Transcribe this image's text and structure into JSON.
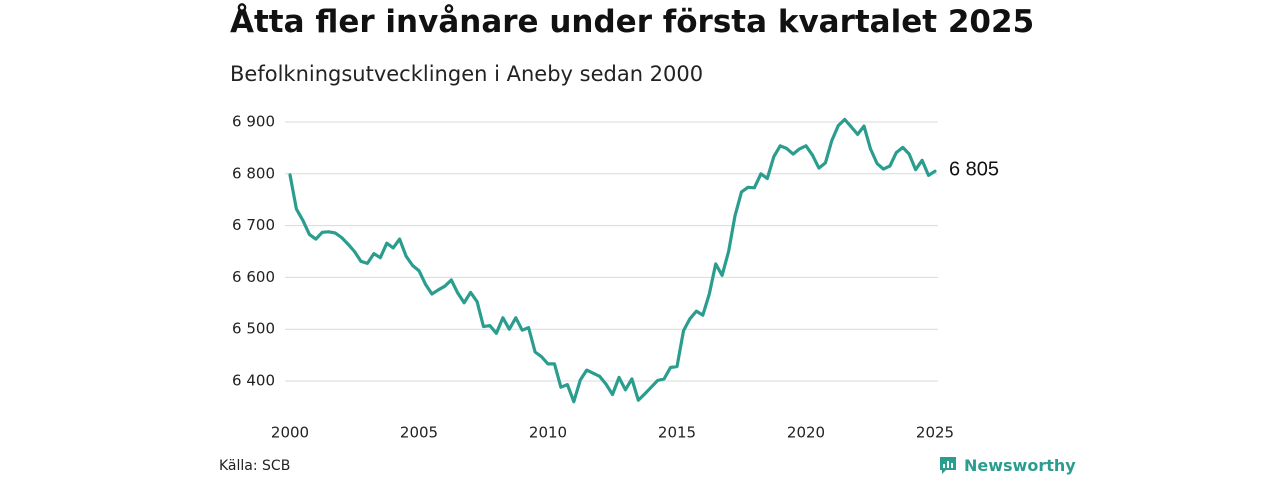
{
  "title": "Åtta fler invånare under första kvartalet 2025",
  "subtitle": "Befolkningsutvecklingen i Aneby sedan 2000",
  "source": "Källa: SCB",
  "brand": {
    "name": "Newsworthy",
    "icon": "newsworthy-logo-icon",
    "color": "#2a9d8f"
  },
  "end_label": "6 805",
  "chart_data": {
    "type": "line",
    "title": "Åtta fler invånare under första kvartalet 2025",
    "subtitle": "Befolkningsutvecklingen i Aneby sedan 2000",
    "xlabel": "",
    "ylabel": "",
    "xlim": [
      2000,
      2025.25
    ],
    "ylim": [
      6350,
      6920
    ],
    "grid": true,
    "line_color": "#2a9d8f",
    "x_ticks": [
      2000,
      2005,
      2010,
      2015,
      2020,
      2025
    ],
    "x_tick_labels": [
      "2000",
      "2005",
      "2010",
      "2015",
      "2020",
      "2025"
    ],
    "y_ticks": [
      6400,
      6500,
      6600,
      6700,
      6800,
      6900
    ],
    "y_tick_labels": [
      "6 400",
      "6 500",
      "6 600",
      "6 700",
      "6 800",
      "6 900"
    ],
    "series": [
      {
        "name": "",
        "x": [
          2000.0,
          2000.25,
          2000.5,
          2000.75,
          2001.0,
          2001.25,
          2001.5,
          2001.75,
          2002.0,
          2002.25,
          2002.5,
          2002.75,
          2003.0,
          2003.25,
          2003.5,
          2003.75,
          2004.0,
          2004.25,
          2004.5,
          2004.75,
          2005.0,
          2005.25,
          2005.5,
          2005.75,
          2006.0,
          2006.25,
          2006.5,
          2006.75,
          2007.0,
          2007.25,
          2007.5,
          2007.75,
          2008.0,
          2008.25,
          2008.5,
          2008.75,
          2009.0,
          2009.25,
          2009.5,
          2009.75,
          2010.0,
          2010.25,
          2010.5,
          2010.75,
          2011.0,
          2011.25,
          2011.5,
          2011.75,
          2012.0,
          2012.25,
          2012.5,
          2012.75,
          2013.0,
          2013.25,
          2013.5,
          2013.75,
          2014.0,
          2014.25,
          2014.5,
          2014.75,
          2015.0,
          2015.25,
          2015.5,
          2015.75,
          2016.0,
          2016.25,
          2016.5,
          2016.75,
          2017.0,
          2017.25,
          2017.5,
          2017.75,
          2018.0,
          2018.25,
          2018.5,
          2018.75,
          2019.0,
          2019.25,
          2019.5,
          2019.75,
          2020.0,
          2020.25,
          2020.5,
          2020.75,
          2021.0,
          2021.25,
          2021.5,
          2021.75,
          2022.0,
          2022.25,
          2022.5,
          2022.75,
          2023.0,
          2023.25,
          2023.5,
          2023.75,
          2024.0,
          2024.25,
          2024.5,
          2024.75,
          2025.0
        ],
        "values": [
          6798,
          6732,
          6710,
          6683,
          6674,
          6687,
          6688,
          6686,
          6677,
          6664,
          6650,
          6631,
          6627,
          6646,
          6638,
          6666,
          6657,
          6674,
          6641,
          6623,
          6613,
          6587,
          6568,
          6576,
          6583,
          6595,
          6570,
          6551,
          6571,
          6553,
          6505,
          6507,
          6492,
          6522,
          6500,
          6522,
          6498,
          6503,
          6456,
          6447,
          6433,
          6433,
          6388,
          6393,
          6360,
          6402,
          6421,
          6415,
          6409,
          6394,
          6374,
          6407,
          6383,
          6404,
          6363,
          6375,
          6388,
          6401,
          6404,
          6426,
          6428,
          6497,
          6520,
          6535,
          6527,
          6568,
          6626,
          6604,
          6650,
          6719,
          6765,
          6774,
          6773,
          6800,
          6791,
          6833,
          6854,
          6849,
          6838,
          6848,
          6854,
          6836,
          6811,
          6821,
          6864,
          6893,
          6905,
          6891,
          6876,
          6892,
          6848,
          6820,
          6809,
          6815,
          6841,
          6851,
          6838,
          6808,
          6826,
          6797,
          6805
        ]
      }
    ]
  }
}
